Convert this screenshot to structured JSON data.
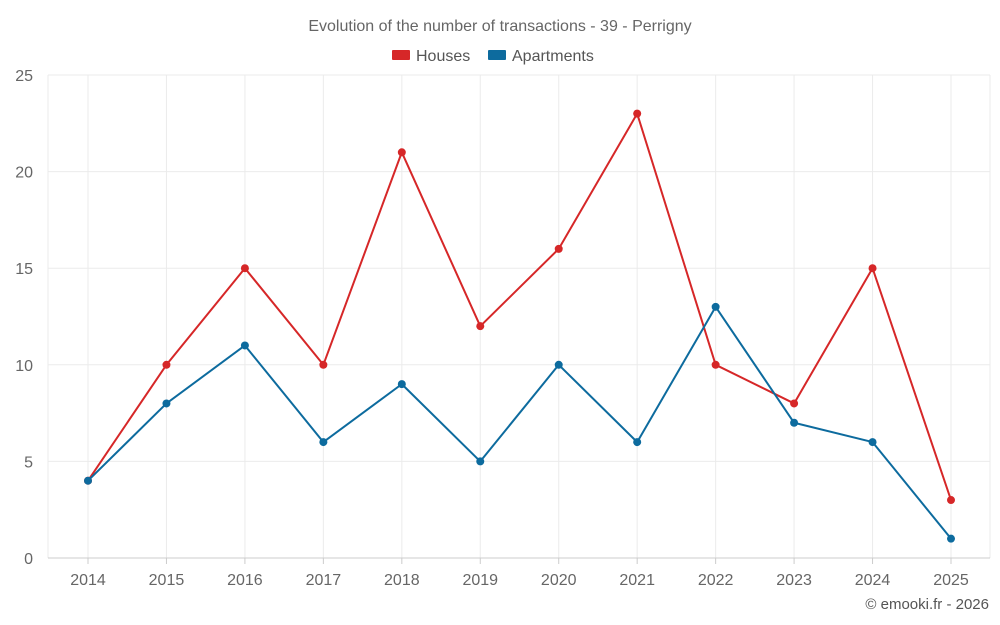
{
  "chart_data": {
    "type": "line",
    "title": "Evolution of the number of transactions - 39 - Perrigny",
    "categories": [
      "2014",
      "2015",
      "2016",
      "2017",
      "2018",
      "2019",
      "2020",
      "2021",
      "2022",
      "2023",
      "2024",
      "2025"
    ],
    "series": [
      {
        "name": "Houses",
        "color": "#d62728",
        "values": [
          4,
          10,
          15,
          10,
          21,
          12,
          16,
          23,
          10,
          8,
          15,
          3
        ]
      },
      {
        "name": "Apartments",
        "color": "#0d6b9e",
        "values": [
          4,
          8,
          11,
          6,
          9,
          5,
          10,
          6,
          13,
          7,
          6,
          1
        ]
      }
    ],
    "ylim": [
      0,
      25
    ],
    "yticks": [
      0,
      5,
      10,
      15,
      20,
      25
    ],
    "xlabel": "",
    "ylabel": "",
    "grid": true,
    "legend_position": "top-center"
  },
  "credit": "© emooki.fr - 2026"
}
